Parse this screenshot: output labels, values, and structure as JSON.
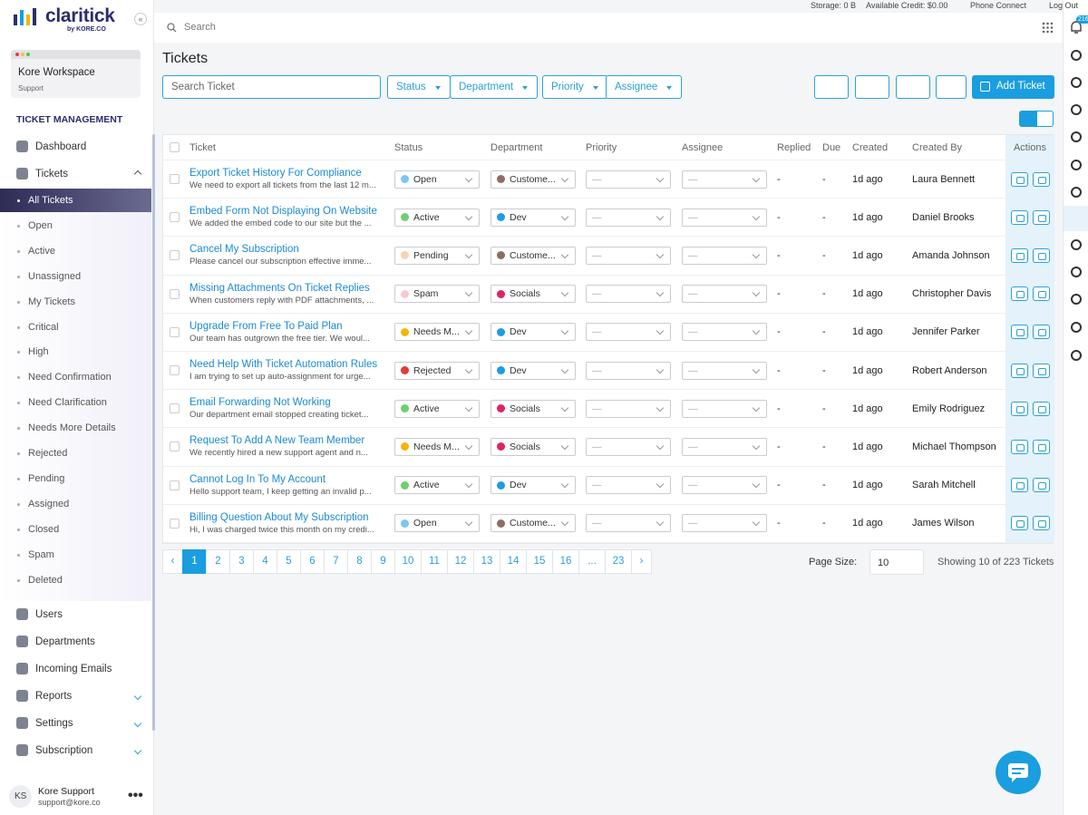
{
  "topbar": {
    "storage": "Storage: 0 B",
    "credit": "Available Credit: $0.00",
    "phone": "Phone Connect",
    "logout": "Log Out",
    "notifications": "216"
  },
  "brand": {
    "name": "claritick",
    "by": "by KORE.CO"
  },
  "search": "Search",
  "workspace": {
    "name": "Kore Workspace",
    "role": "Support"
  },
  "sidebar": {
    "section": "TICKET MANAGEMENT",
    "top": [
      {
        "label": "Dashboard"
      },
      {
        "label": "Tickets",
        "chevron": "up"
      }
    ],
    "sub": [
      {
        "label": "All Tickets",
        "selected": true
      },
      {
        "label": "Open"
      },
      {
        "label": "Active"
      },
      {
        "label": "Unassigned"
      },
      {
        "label": "My Tickets"
      },
      {
        "label": "Critical"
      },
      {
        "label": "High"
      },
      {
        "label": "Need Confirmation"
      },
      {
        "label": "Need Clarification"
      },
      {
        "label": "Needs More Details"
      },
      {
        "label": "Rejected"
      },
      {
        "label": "Pending"
      },
      {
        "label": "Assigned"
      },
      {
        "label": "Closed"
      },
      {
        "label": "Spam"
      },
      {
        "label": "Deleted"
      }
    ],
    "bottom": [
      {
        "label": "Users"
      },
      {
        "label": "Departments"
      },
      {
        "label": "Incoming Emails"
      },
      {
        "label": "Reports",
        "chevron": "down"
      },
      {
        "label": "Settings",
        "chevron": "down"
      },
      {
        "label": "Subscription",
        "chevron": "down"
      }
    ]
  },
  "user": {
    "initials": "KS",
    "name": "Kore Support",
    "email": "support@kore.co"
  },
  "page": {
    "title": "Tickets",
    "search_placeholder": "Search Ticket",
    "filters": [
      "Status",
      "Department",
      "Priority",
      "Assignee"
    ],
    "add": "Add Ticket"
  },
  "table": {
    "headers": [
      "Ticket",
      "Status",
      "Department",
      "Priority",
      "Assignee",
      "Replied",
      "Due",
      "Created",
      "Created By",
      "Actions"
    ],
    "rows": [
      {
        "title": "Export Ticket History For Compliance",
        "description": "We need to export all tickets from the last 12 m...",
        "status": "Open",
        "status_color": "#7cc6ef",
        "department": "Custome...",
        "department_color": "#8d6e63",
        "priority": "—",
        "assignee": "—",
        "replied": "-",
        "due": "-",
        "created": "1d ago",
        "created_by": "Laura Bennett"
      },
      {
        "title": "Embed Form Not Displaying On Website",
        "description": "We added the embed code to our site but the ...",
        "status": "Active",
        "status_color": "#6fcf6f",
        "department": "Dev",
        "department_color": "#1e9be9",
        "priority": "—",
        "assignee": "—",
        "replied": "-",
        "due": "-",
        "created": "1d ago",
        "created_by": "Daniel Brooks"
      },
      {
        "title": "Cancel My Subscription",
        "description": "Please cancel our subscription effective imme...",
        "status": "Pending",
        "status_color": "#f6d3b3",
        "department": "Custome...",
        "department_color": "#8d6e63",
        "priority": "—",
        "assignee": "—",
        "replied": "-",
        "due": "-",
        "created": "1d ago",
        "created_by": "Amanda Johnson"
      },
      {
        "title": "Missing Attachments On Ticket Replies",
        "description": "When customers reply with PDF attachments, ...",
        "status": "Spam",
        "status_color": "#f8c9d2",
        "department": "Socials",
        "department_color": "#e0245e",
        "priority": "—",
        "assignee": "—",
        "replied": "-",
        "due": "-",
        "created": "1d ago",
        "created_by": "Christopher Davis"
      },
      {
        "title": "Upgrade From Free To Paid Plan",
        "description": "Our team has outgrown the free tier. We woul...",
        "status": "Needs M...",
        "status_color": "#f5b400",
        "department": "Dev",
        "department_color": "#1e9be9",
        "priority": "—",
        "assignee": "—",
        "replied": "-",
        "due": "-",
        "created": "1d ago",
        "created_by": "Jennifer Parker"
      },
      {
        "title": "Need Help With Ticket Automation Rules",
        "description": "I am trying to set up auto-assignment for urge...",
        "status": "Rejected",
        "status_color": "#e53935",
        "department": "Dev",
        "department_color": "#1e9be9",
        "priority": "—",
        "assignee": "—",
        "replied": "-",
        "due": "-",
        "created": "1d ago",
        "created_by": "Robert Anderson"
      },
      {
        "title": "Email Forwarding Not Working",
        "description": "Our department email stopped creating ticket...",
        "status": "Active",
        "status_color": "#6fcf6f",
        "department": "Socials",
        "department_color": "#e0245e",
        "priority": "—",
        "assignee": "—",
        "replied": "-",
        "due": "-",
        "created": "1d ago",
        "created_by": "Emily Rodriguez"
      },
      {
        "title": "Request To Add A New Team Member",
        "description": "We recently hired a new support agent and n...",
        "status": "Needs M...",
        "status_color": "#f5b400",
        "department": "Socials",
        "department_color": "#e0245e",
        "priority": "—",
        "assignee": "—",
        "replied": "-",
        "due": "-",
        "created": "1d ago",
        "created_by": "Michael Thompson"
      },
      {
        "title": "Cannot Log In To My Account",
        "description": "Hello support team, I keep getting an invalid p...",
        "status": "Active",
        "status_color": "#6fcf6f",
        "department": "Dev",
        "department_color": "#1e9be9",
        "priority": "—",
        "assignee": "—",
        "replied": "-",
        "due": "-",
        "created": "1d ago",
        "created_by": "Sarah Mitchell"
      },
      {
        "title": "Billing Question About My Subscription",
        "description": "Hi, I was charged twice this month on my credi...",
        "status": "Open",
        "status_color": "#7cc6ef",
        "department": "Custome...",
        "department_color": "#8d6e63",
        "priority": "—",
        "assignee": "—",
        "replied": "-",
        "due": "-",
        "created": "1d ago",
        "created_by": "James Wilson"
      }
    ]
  },
  "pagination": {
    "prev": "‹",
    "pages": [
      {
        "label": "1",
        "current": true
      },
      {
        "label": "2"
      },
      {
        "label": "3"
      },
      {
        "label": "4"
      },
      {
        "label": "5"
      },
      {
        "label": "6"
      },
      {
        "label": "7"
      },
      {
        "label": "8"
      },
      {
        "label": "9"
      },
      {
        "label": "10"
      },
      {
        "label": "11"
      },
      {
        "label": "12"
      },
      {
        "label": "13"
      },
      {
        "label": "14"
      },
      {
        "label": "15"
      },
      {
        "label": "16"
      },
      {
        "label": "..."
      },
      {
        "label": "23"
      }
    ],
    "next": "›",
    "page_size_label": "Page Size:",
    "page_size": "10",
    "summary": "Showing 10 of 223 Tickets"
  }
}
